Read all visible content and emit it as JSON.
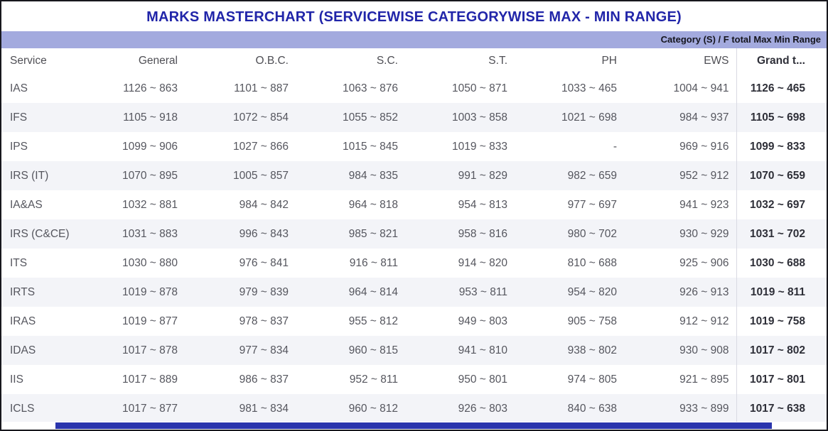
{
  "title": "MARKS MASTERCHART (SERVICEWISE CATEGORYWISE MAX - MIN RANGE)",
  "band_label": "Category (S) / F total Max Min Range",
  "colors": {
    "title_text": "#2125a9",
    "band_bg": "#a3aade",
    "band_text": "#15151e",
    "header_text": "#4f4f55",
    "cell_text": "#55565e",
    "grand_total_text": "#2e2f38",
    "row_alt_bg": "#f3f4f8",
    "scrollbar_thumb": "#2b35ad",
    "outer_border": "#17171d"
  },
  "chart_data": {
    "type": "table",
    "title": "MARKS MASTERCHART (SERVICEWISE CATEGORYWISE MAX - MIN RANGE)",
    "subtitle": "Category (S) / F total Max Min Range",
    "columns": [
      "Service",
      "General",
      "O.B.C.",
      "S.C.",
      "S.T.",
      "PH",
      "EWS",
      "Grand t..."
    ],
    "rows": [
      [
        "IAS",
        "1126 ~ 863",
        "1101 ~ 887",
        "1063 ~ 876",
        "1050 ~ 871",
        "1033 ~ 465",
        "1004 ~ 941",
        "1126 ~ 465"
      ],
      [
        "IFS",
        "1105 ~ 918",
        "1072 ~ 854",
        "1055 ~ 852",
        "1003 ~ 858",
        "1021 ~ 698",
        "984 ~ 937",
        "1105 ~ 698"
      ],
      [
        "IPS",
        "1099 ~ 906",
        "1027 ~ 866",
        "1015 ~ 845",
        "1019 ~ 833",
        "-",
        "969 ~ 916",
        "1099 ~ 833"
      ],
      [
        "IRS (IT)",
        "1070 ~ 895",
        "1005 ~ 857",
        "984 ~ 835",
        "991 ~ 829",
        "982 ~ 659",
        "952 ~ 912",
        "1070 ~ 659"
      ],
      [
        "IA&AS",
        "1032 ~ 881",
        "984 ~ 842",
        "964 ~ 818",
        "954 ~ 813",
        "977 ~ 697",
        "941 ~ 923",
        "1032 ~ 697"
      ],
      [
        "IRS (C&CE)",
        "1031 ~ 883",
        "996 ~ 843",
        "985 ~ 821",
        "958 ~ 816",
        "980 ~ 702",
        "930 ~ 929",
        "1031 ~ 702"
      ],
      [
        "ITS",
        "1030 ~ 880",
        "976 ~ 841",
        "916 ~ 811",
        "914 ~ 820",
        "810 ~ 688",
        "925 ~ 906",
        "1030 ~ 688"
      ],
      [
        "IRTS",
        "1019 ~ 878",
        "979 ~ 839",
        "964 ~ 814",
        "953 ~ 811",
        "954 ~ 820",
        "926 ~ 913",
        "1019 ~ 811"
      ],
      [
        "IRAS",
        "1019 ~ 877",
        "978 ~ 837",
        "955 ~ 812",
        "949 ~ 803",
        "905 ~ 758",
        "912 ~ 912",
        "1019 ~ 758"
      ],
      [
        "IDAS",
        "1017 ~ 878",
        "977 ~ 834",
        "960 ~ 815",
        "941 ~ 810",
        "938 ~ 802",
        "930 ~ 908",
        "1017 ~ 802"
      ],
      [
        "IIS",
        "1017 ~ 889",
        "986 ~ 837",
        "952 ~ 811",
        "950 ~ 801",
        "974 ~ 805",
        "921 ~ 895",
        "1017 ~ 801"
      ],
      [
        "ICLS",
        "1017 ~ 877",
        "981 ~ 834",
        "960 ~ 812",
        "926 ~ 803",
        "840 ~ 638",
        "933 ~ 899",
        "1017 ~ 638"
      ]
    ]
  }
}
